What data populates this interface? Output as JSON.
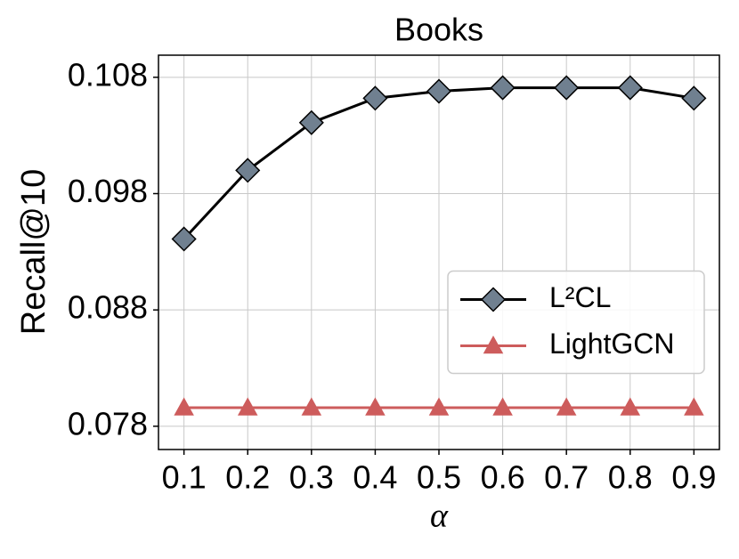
{
  "chart_data": {
    "type": "line",
    "title": "Books",
    "xlabel": "α",
    "ylabel": "Recall@10",
    "x": [
      0.1,
      0.2,
      0.3,
      0.4,
      0.5,
      0.6,
      0.7,
      0.8,
      0.9
    ],
    "series": [
      {
        "name": "L²CL",
        "color": "#000000",
        "marker": "diamond",
        "marker_color": "#708090",
        "values": [
          0.0941,
          0.1,
          0.1041,
          0.1062,
          0.1068,
          0.1071,
          0.1071,
          0.1071,
          0.1062
        ]
      },
      {
        "name": "LightGCN",
        "color": "#cd5c5c",
        "marker": "triangle",
        "marker_color": "#cd5c5c",
        "values": [
          0.0796,
          0.0796,
          0.0796,
          0.0796,
          0.0796,
          0.0796,
          0.0796,
          0.0796,
          0.0796
        ]
      }
    ],
    "xlim": [
      0.06,
      0.94
    ],
    "xticks": [
      0.1,
      0.2,
      0.3,
      0.4,
      0.5,
      0.6,
      0.7,
      0.8,
      0.9
    ],
    "ylim": [
      0.076,
      0.1099
    ],
    "yticks": [
      0.078,
      0.088,
      0.098,
      0.108
    ],
    "grid": true,
    "legend": "center right"
  }
}
